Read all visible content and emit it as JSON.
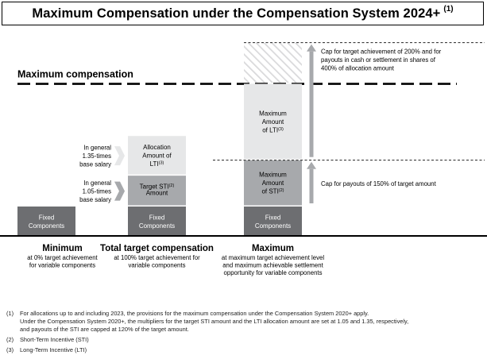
{
  "title": "Maximum Compensation under the Compensation System 2024+",
  "title_sup": "(1)",
  "chart_data": {
    "type": "bar",
    "stacked": true,
    "title": "Maximum Compensation under the Compensation System 2024+",
    "max_line_label": "Maximum  compensation",
    "categories": [
      {
        "name": "Minimum",
        "desc": [
          "at 0% target achievement",
          "for variable components"
        ]
      },
      {
        "name": "Total target compensation",
        "desc": [
          "at 100% target achievement  for",
          "variable components"
        ]
      },
      {
        "name": "Maximum",
        "desc": [
          "at maximum  target achievement level",
          "and maximum  achievable settlement",
          "opportunity for variable components"
        ]
      }
    ],
    "series": [
      {
        "name": "Fixed Components",
        "label": [
          "Fixed",
          "Components"
        ],
        "color": "#6d6e71",
        "text_color": "#ffffff",
        "values": [
          1,
          1,
          1
        ]
      },
      {
        "name": "Short-Term Incentive",
        "label": [
          "Target STI(2)",
          "Amount"
        ],
        "max_label": [
          "Maximum",
          "Amount",
          "of STI (2)"
        ],
        "color": "#a7a9ac",
        "text_color": "#000000",
        "values": [
          0,
          1.05,
          1.575
        ]
      },
      {
        "name": "Long-Term Incentive",
        "label": [
          "Allocation",
          "Amount of",
          "LTI(3)"
        ],
        "max_label": [
          "Maximum",
          "Amount",
          "of LTI (3)"
        ],
        "color": "#e6e7e8",
        "text_color": "#000000",
        "values": [
          0,
          1.35,
          2.6
        ]
      },
      {
        "name": "LTI cap for shares",
        "color": "#e6e7e8",
        "hatched": true,
        "values": [
          0,
          0,
          1.4
        ]
      }
    ],
    "multiplier_labels": [
      [
        "In general",
        "1.35-times",
        "base salary"
      ],
      [
        "In general",
        "1.05-times",
        "base salary"
      ]
    ],
    "annotations": [
      [
        "Cap for target achievement  of 200% and for",
        "payouts  in cash or settlement  in shares of",
        "400% of allocation  amount"
      ],
      [
        "Cap for payouts of 150% of target amount"
      ]
    ]
  },
  "footnotes": [
    {
      "mark": "(1)",
      "lines": [
        "For allocations up to and including 2023, the provisions for the maximum compensation  under the Compensation  System 2020+ apply.",
        "Under the Compensation  System 2020+, the multipliers  for the target STI amount and the LTI allocation  amount are set at 1.05 and 1.35, respectively,",
        "and payouts of the STI are capped at 120% of the target amount."
      ]
    },
    {
      "mark": "(2)",
      "lines": [
        "Short-Term Incentive (STI)"
      ]
    },
    {
      "mark": "(3)",
      "lines": [
        "Long-Term Incentive (LTI)"
      ]
    }
  ]
}
